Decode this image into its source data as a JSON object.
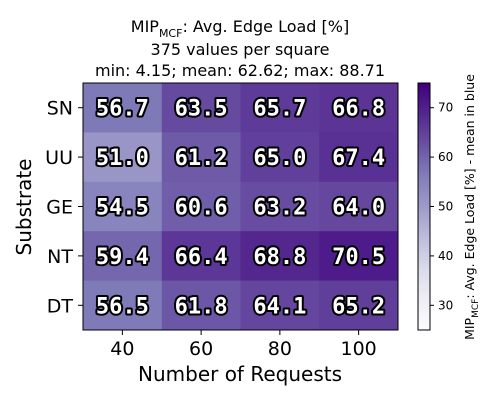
{
  "chart_data": {
    "type": "heatmap",
    "title": {
      "prefix": "MIP",
      "subscript": "MCF",
      "rest": ": Avg. Edge Load [%]",
      "line2": "375 values per square",
      "line3": "min: 4.15; mean: 62.62; max: 88.71"
    },
    "xlabel": "Number of Requests",
    "ylabel": "Substrate",
    "x_categories": [
      "40",
      "60",
      "80",
      "100"
    ],
    "y_categories": [
      "SN",
      "UU",
      "GE",
      "NT",
      "DT"
    ],
    "values": [
      [
        56.7,
        63.5,
        65.7,
        66.8
      ],
      [
        51.0,
        61.2,
        65.0,
        67.4
      ],
      [
        54.5,
        60.6,
        63.2,
        64.0
      ],
      [
        59.4,
        66.4,
        68.8,
        70.5
      ],
      [
        56.5,
        61.8,
        64.1,
        65.2
      ]
    ],
    "value_labels": [
      [
        "56.7",
        "63.5",
        "65.7",
        "66.8"
      ],
      [
        "51.0",
        "61.2",
        "65.0",
        "67.4"
      ],
      [
        "54.5",
        "60.6",
        "63.2",
        "64.0"
      ],
      [
        "59.4",
        "66.4",
        "68.8",
        "70.5"
      ],
      [
        "56.5",
        "61.8",
        "64.1",
        "65.2"
      ]
    ],
    "colorbar": {
      "range": [
        25,
        75
      ],
      "ticks": [
        "30",
        "40",
        "50",
        "60",
        "70"
      ],
      "label": {
        "prefix": "MIP",
        "subscript": "MCF",
        "rest": ": Avg. Edge Load [%] - mean in blue"
      },
      "colormap": "Purples",
      "colors": [
        "#fcfbfd",
        "#efedf5",
        "#dadaeb",
        "#bcbddc",
        "#9e9ac8",
        "#807dba",
        "#6a51a3",
        "#54278f",
        "#3f007d"
      ]
    },
    "grid": false
  }
}
